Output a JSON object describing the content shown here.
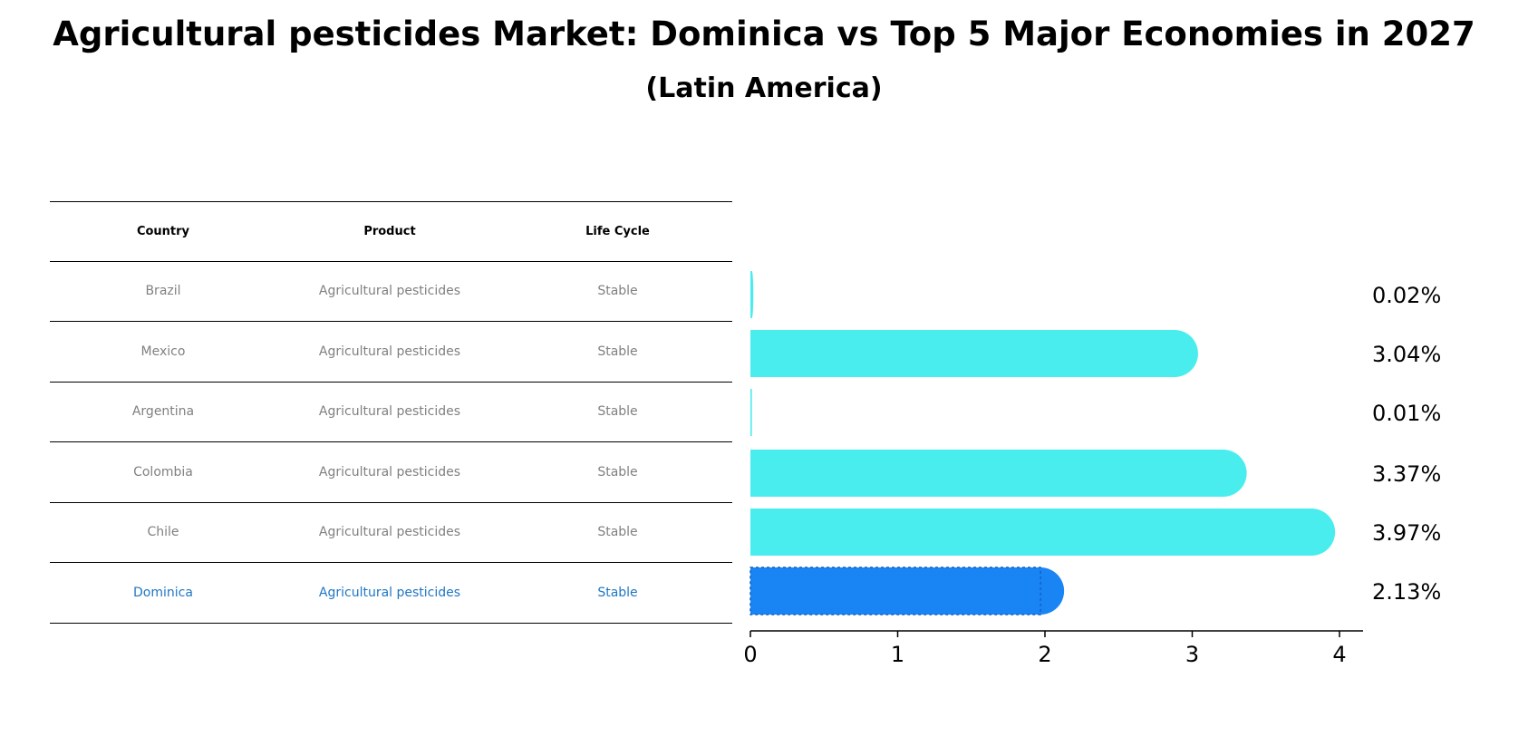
{
  "title": "Agricultural pesticides Market: Dominica vs Top 5 Major Economies in 2027",
  "subtitle": "(Latin America)",
  "table": {
    "headers": [
      "Country",
      "Product",
      "Life Cycle"
    ],
    "rows": [
      {
        "country": "Brazil",
        "product": "Agricultural pesticides",
        "life_cycle": "Stable"
      },
      {
        "country": "Mexico",
        "product": "Agricultural pesticides",
        "life_cycle": "Stable"
      },
      {
        "country": "Argentina",
        "product": "Agricultural pesticides",
        "life_cycle": "Stable"
      },
      {
        "country": "Colombia",
        "product": "Agricultural pesticides",
        "life_cycle": "Stable"
      },
      {
        "country": "Chile",
        "product": "Agricultural pesticides",
        "life_cycle": "Stable"
      },
      {
        "country": "Dominica",
        "product": "Agricultural pesticides",
        "life_cycle": "Stable"
      }
    ]
  },
  "chart_data": {
    "type": "bar",
    "orientation": "horizontal",
    "categories": [
      "Brazil",
      "Mexico",
      "Argentina",
      "Colombia",
      "Chile",
      "Dominica"
    ],
    "values": [
      0.02,
      3.04,
      0.01,
      3.37,
      3.97,
      2.13
    ],
    "value_labels": [
      "0.02%",
      "3.04%",
      "0.01%",
      "3.37%",
      "3.97%",
      "2.13%"
    ],
    "xlim": [
      0,
      4.17
    ],
    "xticks": [
      "0",
      "1",
      "2",
      "3",
      "4"
    ],
    "highlight": "Dominica",
    "colors": {
      "default": "#4aeded",
      "highlight": "#1985f5"
    }
  }
}
